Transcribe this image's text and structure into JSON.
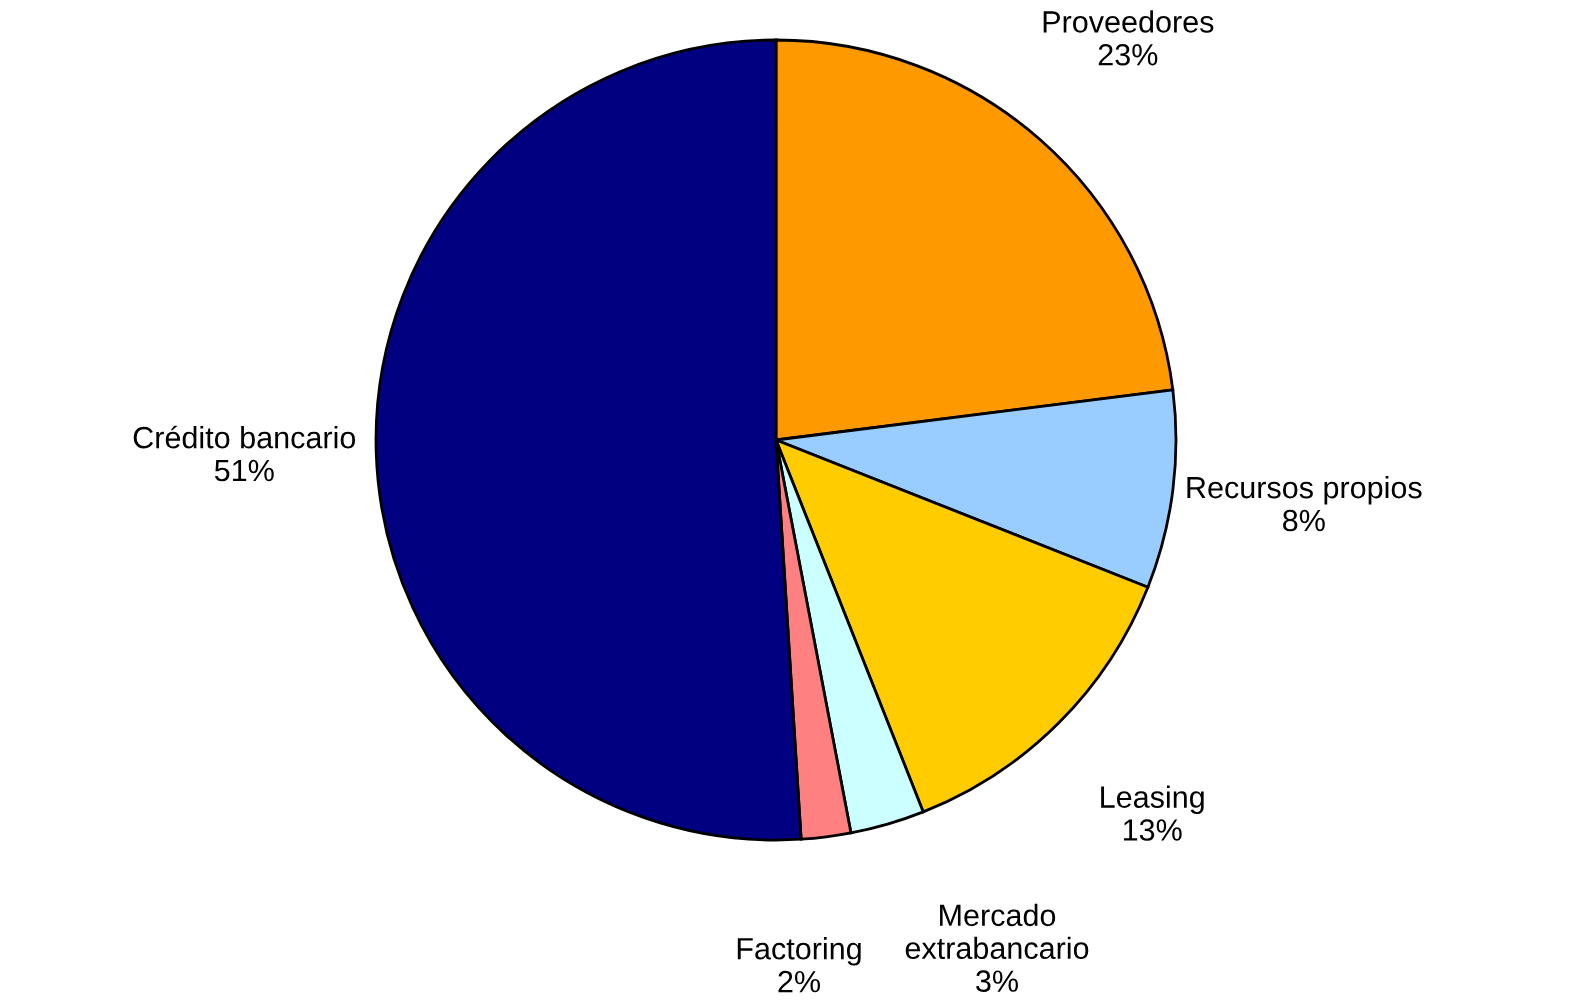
{
  "chart_data": {
    "type": "pie",
    "categories": [
      "Proveedores",
      "Recursos propios",
      "Leasing",
      "Mercado extrabancario",
      "Factoring",
      "Crédito bancario"
    ],
    "values": [
      23,
      8,
      13,
      3,
      2,
      51
    ],
    "value_labels": [
      "23%",
      "8%",
      "13%",
      "3%",
      "2%",
      "51%"
    ],
    "colors": [
      "#ff9900",
      "#99ccff",
      "#ffcc00",
      "#ccffff",
      "#ff8080",
      "#000080"
    ],
    "legend": false
  }
}
